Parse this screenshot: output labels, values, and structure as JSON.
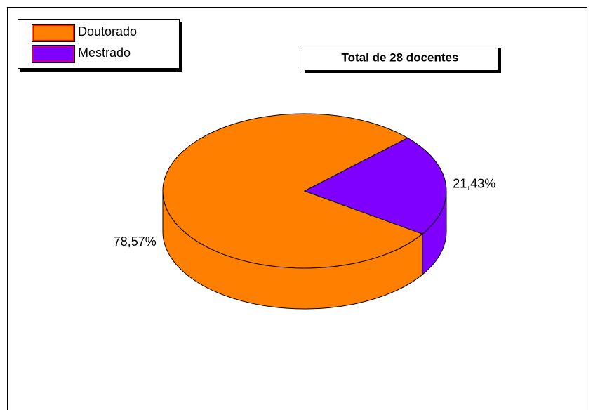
{
  "chart_data": {
    "type": "pie",
    "title": "Total de 28 docentes",
    "categories": [
      "Doutorado",
      "Mestrado"
    ],
    "values": [
      78.57,
      21.43
    ],
    "value_labels": [
      "78,57%",
      "21,43%"
    ],
    "colors": [
      "#ff8000",
      "#8000ff"
    ],
    "legend": "upper left"
  }
}
